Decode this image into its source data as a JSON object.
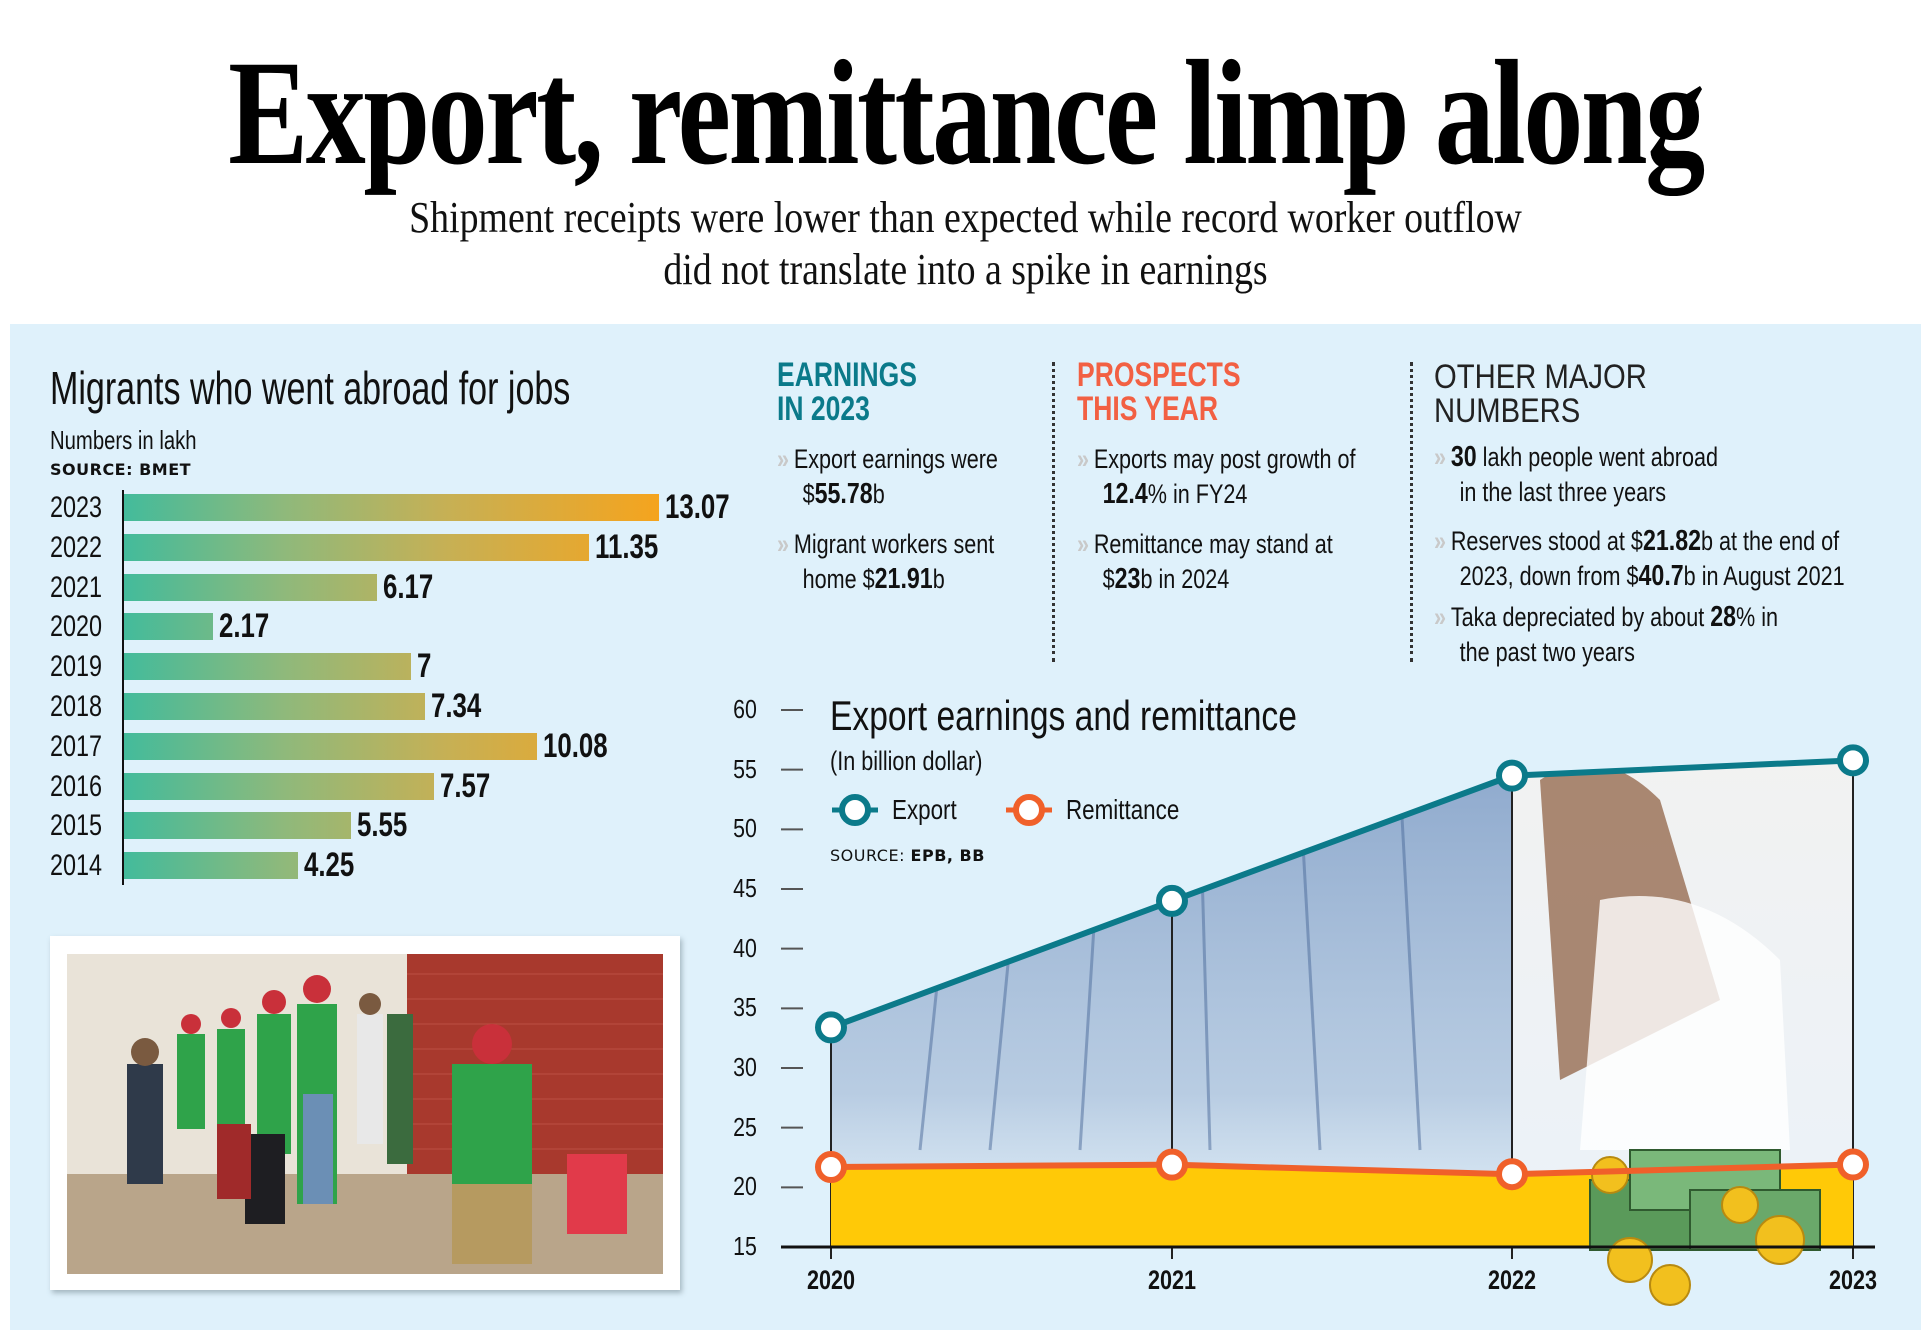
{
  "header": {
    "headline": "Export, remittance limp along",
    "subtitle_line1": "Shipment receipts were lower than expected while record worker outflow",
    "subtitle_line2": "did not translate into a spike in earnings"
  },
  "colors": {
    "panel_bg": "#dff1fb",
    "export_line": "#0b7a8a",
    "remittance_line": "#f0602a",
    "remittance_fill": "#ffc907",
    "earnings_heading": "#0b7a8a",
    "prospects_heading": "#f26043",
    "bar_gradient_start": "#43bb9b",
    "bar_gradient_end": "#f5a41e"
  },
  "migrants": {
    "title": "Migrants who went abroad for jobs",
    "subtitle": "Numbers in lakh",
    "source_label": "SOURCE: BMET"
  },
  "earnings": {
    "heading_line1": "EARNINGS",
    "heading_line2": "IN 2023",
    "items": [
      {
        "pre": "Export earnings were",
        "line2_pre": "$",
        "bold": "55.78",
        "post": "b"
      },
      {
        "pre": "Migrant workers sent",
        "line2_pre": "home $",
        "bold": "21.91",
        "post": "b"
      }
    ]
  },
  "prospects": {
    "heading_line1": "PROSPECTS",
    "heading_line2": "THIS YEAR",
    "items": [
      {
        "pre": "Exports may post growth of",
        "line2_pre": "",
        "bold": "12.4",
        "post": "% in FY24"
      },
      {
        "pre": "Remittance may stand at",
        "line2_pre": "$",
        "bold": "23",
        "post": "b in 2024"
      }
    ]
  },
  "other": {
    "heading_line1": "OTHER MAJOR",
    "heading_line2": "NUMBERS",
    "items": [
      {
        "l1_pre": "",
        "l1_bold": "30",
        "l1_post": " lakh people went abroad",
        "l2_pre": "in the last three years",
        "l2_bold": "",
        "l2_post": ""
      },
      {
        "l1_pre": "Reserves stood at $",
        "l1_bold": "21.82",
        "l1_post": "b at the end of",
        "l2_pre": "2023, down from $",
        "l2_bold": "40.7",
        "l2_post": "b in August 2021"
      },
      {
        "l1_pre": "Taka depreciated by about ",
        "l1_bold": "28",
        "l1_post": "% in",
        "l2_pre": "the past two years",
        "l2_bold": "",
        "l2_post": ""
      }
    ]
  },
  "icons": {
    "bullet": "chevron-double-right-icon",
    "legend_marker": "ring-marker-icon",
    "photo_migrants": "photo-migrant-workers-queue",
    "photo_garments": "photo-woman-with-denim",
    "money_illustration": "money-stack-coins-icon"
  },
  "chart_data": [
    {
      "type": "bar",
      "orientation": "horizontal",
      "title": "Migrants who went abroad for jobs",
      "subtitle": "Numbers in lakh",
      "source": "SOURCE: BMET",
      "categories": [
        "2023",
        "2022",
        "2021",
        "2020",
        "2019",
        "2018",
        "2017",
        "2016",
        "2015",
        "2014"
      ],
      "values": [
        13.07,
        11.35,
        6.17,
        2.17,
        7,
        7.34,
        10.08,
        7.57,
        5.55,
        4.25
      ],
      "value_labels": [
        "13.07",
        "11.35",
        "6.17",
        "2.17",
        "7",
        "7.34",
        "10.08",
        "7.57",
        "5.55",
        "4.25"
      ],
      "xlabel": "",
      "ylabel": "",
      "grid": false
    },
    {
      "type": "line",
      "title": "Export earnings and remittance",
      "subtitle": "(In billion dollar)",
      "source_prefix": "SOURCE: ",
      "source_bold": "EPB, BB",
      "x": [
        "2020",
        "2021",
        "2022",
        "2023"
      ],
      "series": [
        {
          "name": "Export",
          "values": [
            33.4,
            44.0,
            54.5,
            55.78
          ],
          "color": "#0b7a8a"
        },
        {
          "name": "Remittance",
          "values": [
            21.7,
            21.9,
            21.1,
            21.91
          ],
          "color": "#f0602a",
          "area_fill": "#ffc907"
        }
      ],
      "yticks": [
        "60",
        "55",
        "50",
        "45",
        "40",
        "35",
        "30",
        "25",
        "20",
        "15"
      ],
      "ylim": [
        15,
        60
      ],
      "legend_position": "top-left",
      "grid": false
    }
  ]
}
